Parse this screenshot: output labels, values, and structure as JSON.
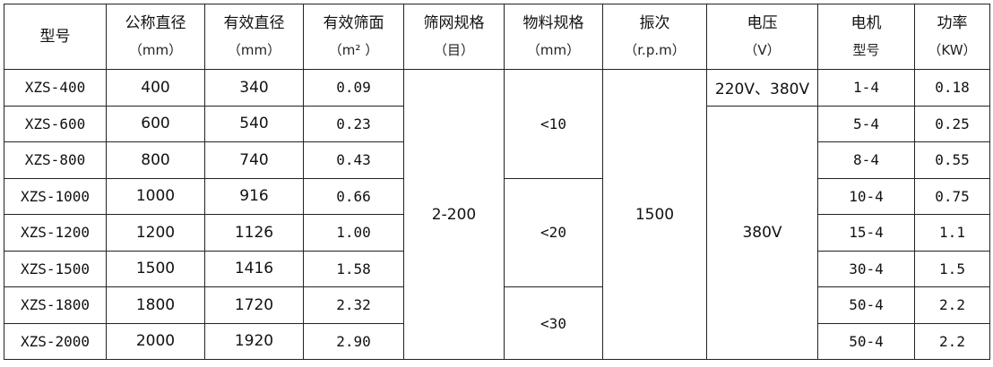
{
  "headers": [
    {
      "title": "型号",
      "unit": ""
    },
    {
      "title": "公称直径",
      "unit": "（mm）"
    },
    {
      "title": "有效直径",
      "unit": "（mm）"
    },
    {
      "title": "有效筛面",
      "unit": "（m² ）"
    },
    {
      "title": "筛网规格",
      "unit": "（目）"
    },
    {
      "title": "物料规格",
      "unit": "（mm）"
    },
    {
      "title": "振次",
      "unit": "（r.p.m）"
    },
    {
      "title": "电压",
      "unit": "（V）"
    },
    {
      "title": "电机",
      "unit": "型号"
    },
    {
      "title": "功率",
      "unit": "（KW）"
    }
  ],
  "rows": [
    {
      "model": "XZS-400",
      "nominal": "400",
      "effective": "340",
      "area": "0.09",
      "motor": "1-4",
      "power": "0.18"
    },
    {
      "model": "XZS-600",
      "nominal": "600",
      "effective": "540",
      "area": "0.23",
      "motor": "5-4",
      "power": "0.25"
    },
    {
      "model": "XZS-800",
      "nominal": "800",
      "effective": "740",
      "area": "0.43",
      "motor": "8-4",
      "power": "0.55"
    },
    {
      "model": "XZS-1000",
      "nominal": "1000",
      "effective": "916",
      "area": "0.66",
      "motor": "10-4",
      "power": "0.75"
    },
    {
      "model": "XZS-1200",
      "nominal": "1200",
      "effective": "1126",
      "area": "1.00",
      "motor": "15-4",
      "power": "1.1"
    },
    {
      "model": "XZS-1500",
      "nominal": "1500",
      "effective": "1416",
      "area": "1.58",
      "motor": "30-4",
      "power": "1.5"
    },
    {
      "model": "XZS-1800",
      "nominal": "1800",
      "effective": "1720",
      "area": "2.32",
      "motor": "50-4",
      "power": "2.2"
    },
    {
      "model": "XZS-2000",
      "nominal": "2000",
      "effective": "1920",
      "area": "2.90",
      "motor": "50-4",
      "power": "2.2"
    }
  ],
  "merged": {
    "mesh": "2-200",
    "material": [
      "<10",
      "<20",
      "<30"
    ],
    "vibration": "1500",
    "voltage": [
      "220V、380V",
      "380V"
    ]
  }
}
